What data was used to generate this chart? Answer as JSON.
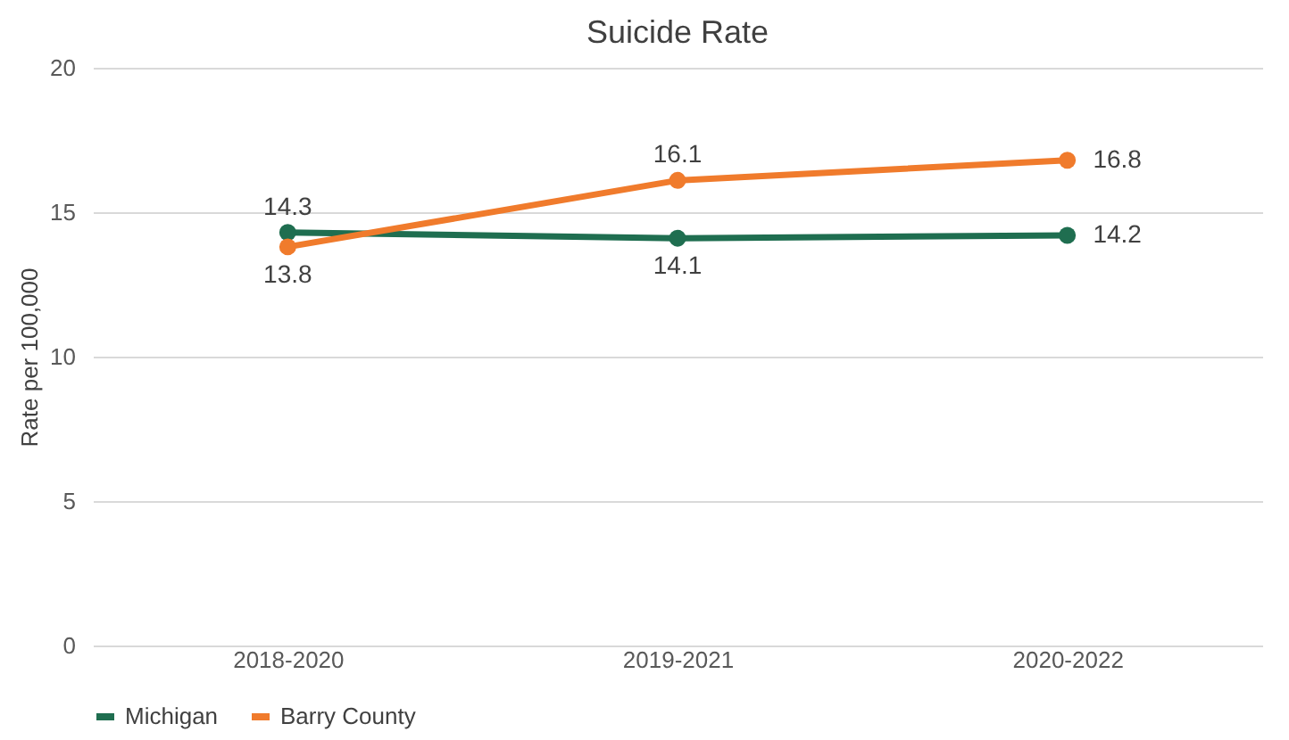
{
  "chart_data": {
    "type": "line",
    "title": "Suicide Rate",
    "ylabel": "Rate per 100,000",
    "categories": [
      "2018-2020",
      "2019-2021",
      "2020-2022"
    ],
    "series": [
      {
        "name": "Michigan",
        "color": "#1f6e50",
        "values": [
          14.3,
          14.1,
          14.2
        ]
      },
      {
        "name": "Barry County",
        "color": "#f07b2c",
        "values": [
          13.8,
          16.1,
          16.8
        ]
      }
    ],
    "ylim": [
      0,
      20
    ],
    "yticks": [
      0,
      5,
      10,
      15,
      20
    ],
    "grid": "y",
    "legend": "bottom",
    "marker": "circle",
    "line_style": "solid",
    "data_labels": true
  }
}
